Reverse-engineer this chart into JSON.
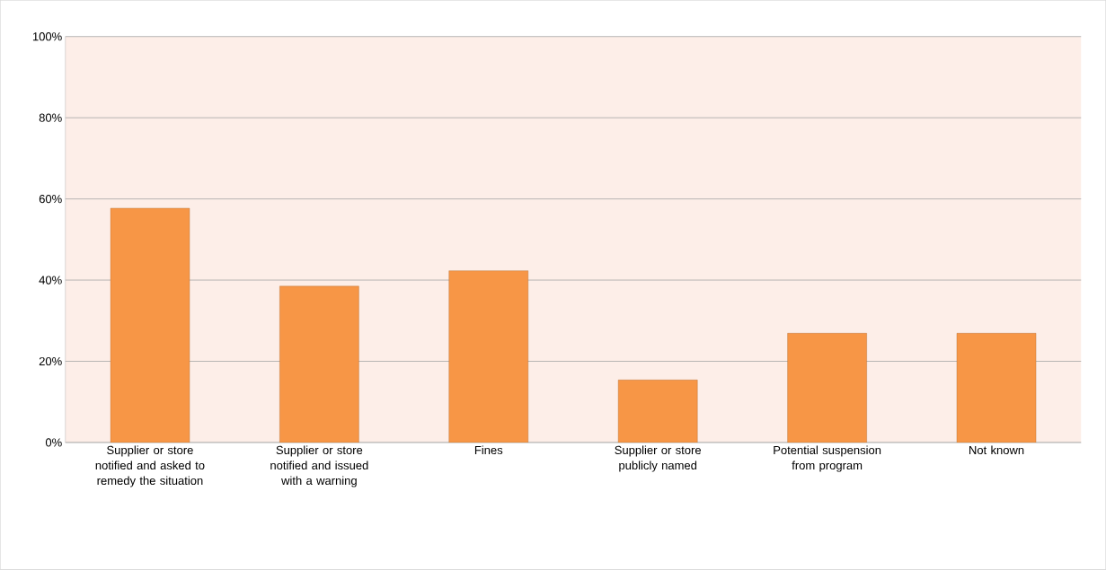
{
  "chart_data": {
    "type": "bar",
    "categories": [
      "Supplier or store notified and asked to remedy the situation",
      "Supplier or store notified and issued with a warning",
      "Fines",
      "Supplier or store publicly named",
      "Potential suspension from program",
      "Not known"
    ],
    "values": [
      57.7,
      38.5,
      42.3,
      15.4,
      26.9,
      26.9
    ],
    "color": "#f79646",
    "ylim": [
      0,
      100
    ],
    "yticks": [
      {
        "value": 0,
        "label": "0%"
      },
      {
        "value": 20,
        "label": "20%"
      },
      {
        "value": 40,
        "label": "40%"
      },
      {
        "value": 60,
        "label": "60%"
      },
      {
        "value": 80,
        "label": "80%"
      },
      {
        "value": 100,
        "label": "100%"
      }
    ],
    "grid": "y"
  }
}
